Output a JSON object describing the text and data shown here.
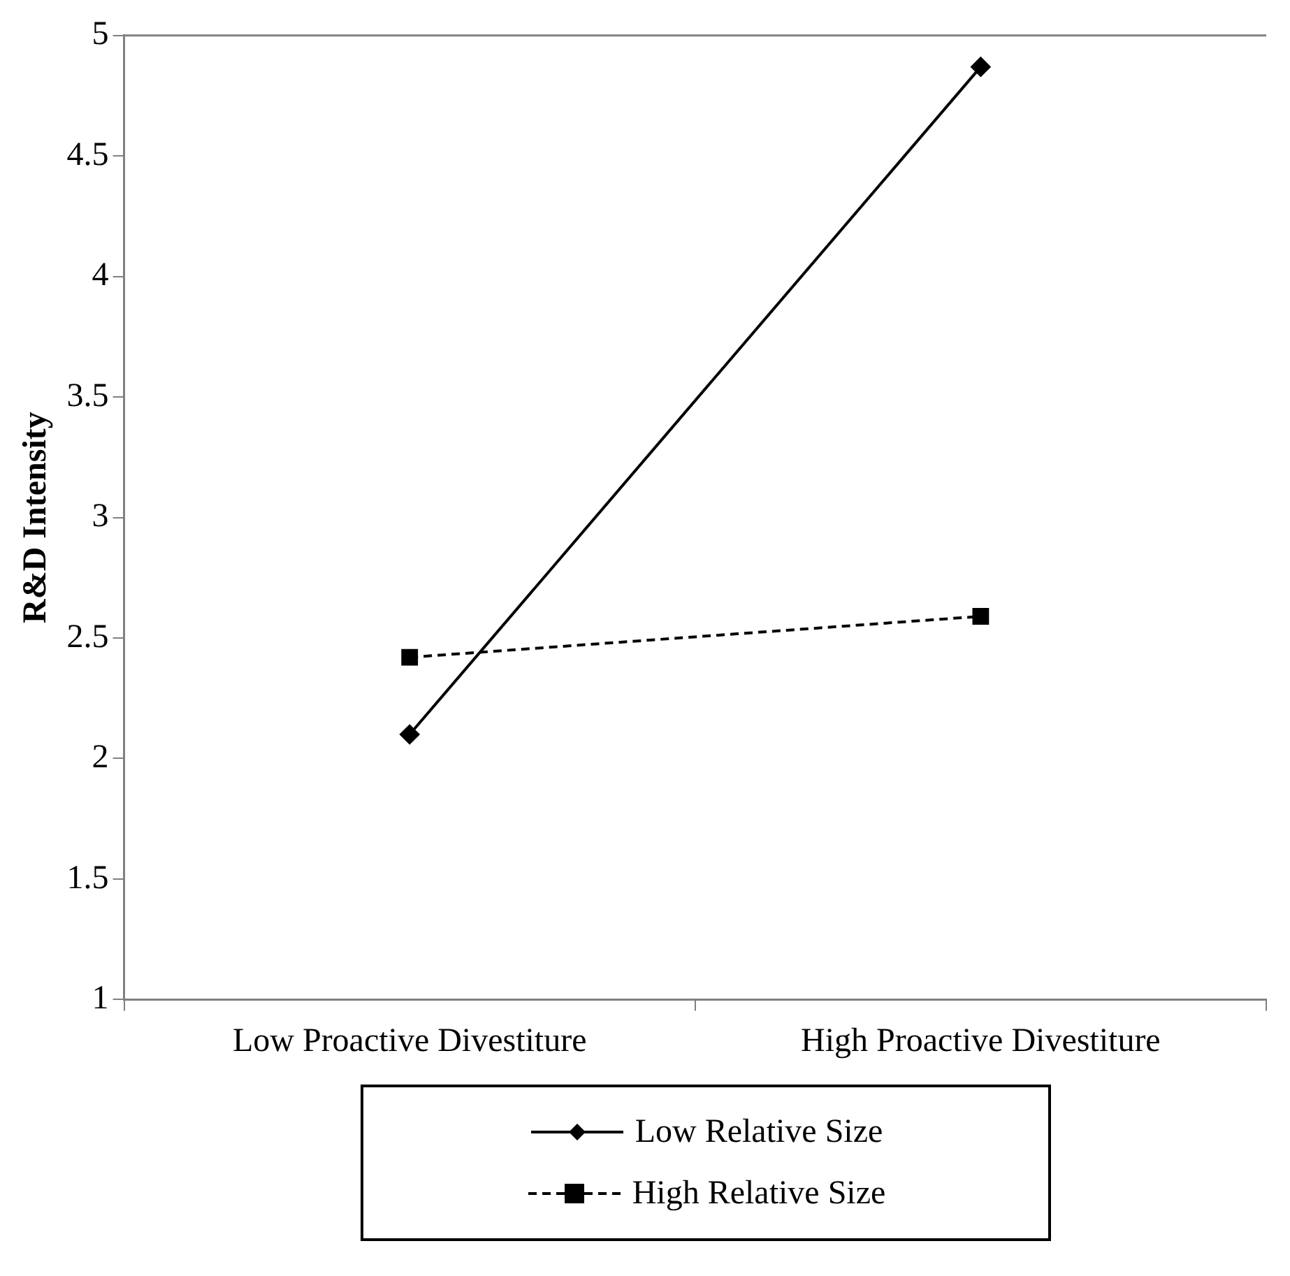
{
  "chart_data": {
    "type": "line",
    "ylabel": "R&D Intensity",
    "categories": [
      "Low Proactive Divestiture",
      "High Proactive Divestiture"
    ],
    "series": [
      {
        "name": "Low Relative Size",
        "color": "#000000",
        "values": [
          2.1,
          4.87
        ],
        "marker": "diamond",
        "line_style": "solid"
      },
      {
        "name": "High Relative Size",
        "color": "#000000",
        "values": [
          2.42,
          2.59
        ],
        "marker": "square",
        "line_style": "dashed"
      }
    ],
    "ylim": [
      1,
      5
    ],
    "yticks": [
      1,
      1.5,
      2,
      2.5,
      3,
      3.5,
      4,
      4.5,
      5
    ],
    "grid": false,
    "legend": "bottom"
  }
}
